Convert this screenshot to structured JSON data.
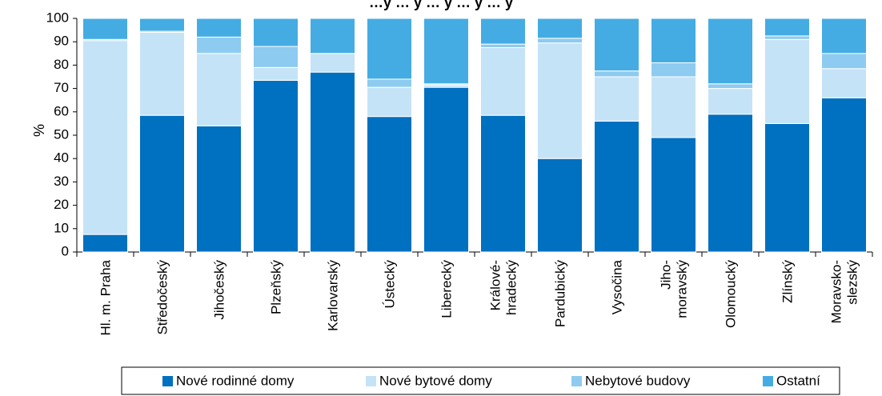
{
  "chart_data": {
    "type": "bar",
    "stacked": true,
    "orientation": "vertical",
    "title": "…y … y … y … y … y",
    "ylabel": "%",
    "ylim": [
      0,
      100
    ],
    "yticks": [
      0,
      10,
      20,
      30,
      40,
      50,
      60,
      70,
      80,
      90,
      100
    ],
    "grid": false,
    "legend_position": "bottom",
    "categories": [
      [
        "Hl. m. Praha"
      ],
      [
        "Středočeský"
      ],
      [
        "Jihočeský"
      ],
      [
        "Plzeňský"
      ],
      [
        "Karlovarský"
      ],
      [
        "Ústecký"
      ],
      [
        "Liberecký"
      ],
      [
        "Králové-",
        "hradecký"
      ],
      [
        "Pardubický"
      ],
      [
        "Vysočina"
      ],
      [
        "Jiho-",
        "moravský"
      ],
      [
        "Olomoucký"
      ],
      [
        "Zlínský"
      ],
      [
        "Moravsko-",
        "slezský"
      ]
    ],
    "series": [
      {
        "name": "Nové rodinné domy",
        "color": "#0070c0",
        "values": [
          7.5,
          58.5,
          54,
          73.5,
          77,
          58,
          70.5,
          58.5,
          40,
          56,
          49,
          59,
          55,
          66
        ]
      },
      {
        "name": "Nové bytové domy",
        "color": "#c5e3f7",
        "values": [
          83,
          35.5,
          31,
          5.5,
          8,
          12.5,
          1,
          29,
          49.5,
          19,
          26,
          11,
          36,
          12.5
        ]
      },
      {
        "name": "Nebytové budovy",
        "color": "#8ecbf0",
        "values": [
          0.5,
          0.5,
          7,
          9,
          0,
          3.5,
          0.5,
          1.5,
          2,
          2.5,
          6,
          2,
          1.5,
          6.5
        ]
      },
      {
        "name": "Ostatní",
        "color": "#45ace3",
        "values": [
          9,
          5.5,
          8,
          12,
          15,
          26,
          28,
          11,
          8.5,
          22.5,
          19,
          28,
          7.5,
          15
        ]
      }
    ]
  }
}
